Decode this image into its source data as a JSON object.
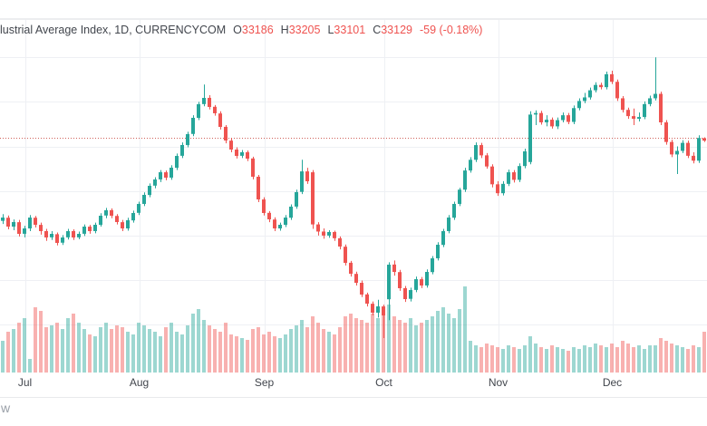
{
  "header": {
    "symbol_text": "lustrial Average Index, 1D, CURRENCYCOM",
    "ohlc": [
      {
        "k": "O",
        "v": "33186"
      },
      {
        "k": "H",
        "v": "33205"
      },
      {
        "k": "L",
        "v": "33101"
      },
      {
        "k": "C",
        "v": "33129"
      }
    ],
    "change": "-59 (-0.18%)"
  },
  "watermark": "w",
  "colors": {
    "up": "#26a69a",
    "down": "#ef5350",
    "vol_up": "rgba(38,166,154,0.45)",
    "vol_down": "rgba(239,83,80,0.45)",
    "grid": "#eef0f4",
    "prev_close_line": "#d0605a",
    "axis_text": "#42464d",
    "legend_value": "#ef5350"
  },
  "chart_data": {
    "type": "candlestick_with_volume",
    "symbol": "Dow Jones Industrial Average Index",
    "interval": "1D",
    "exchange": "CURRENCYCOM",
    "legend_last_bar": {
      "open": 33186,
      "high": 33205,
      "low": 33101,
      "close": 33129,
      "change": -59,
      "change_pct": -0.18
    },
    "prev_close": 33188,
    "ylim": [
      28069,
      35167
    ],
    "h_gridline_prices": [
      29000,
      30000,
      31000,
      32000,
      33000,
      34000,
      35000
    ],
    "x_tick_labels": [
      "Jul",
      "Aug",
      "Sep",
      "Oct",
      "Nov",
      "Dec"
    ],
    "month_start_indices": [
      4,
      25,
      48,
      70,
      91,
      112
    ],
    "grid_on": true,
    "legend_position": "top-left",
    "candles_format": [
      "open",
      "high",
      "low",
      "close",
      "volume_rel"
    ],
    "candles": [
      [
        31330,
        31480,
        31260,
        31404,
        35
      ],
      [
        31400,
        31450,
        31140,
        31201,
        45
      ],
      [
        31200,
        31360,
        31120,
        31303,
        48
      ],
      [
        31300,
        31350,
        30980,
        31038,
        55
      ],
      [
        31040,
        31220,
        30960,
        31160,
        60
      ],
      [
        31160,
        31460,
        31100,
        31404,
        15
      ],
      [
        31400,
        31440,
        31180,
        31242,
        72
      ],
      [
        31240,
        31290,
        31020,
        31099,
        68
      ],
      [
        31100,
        31150,
        30880,
        30957,
        50
      ],
      [
        30960,
        31100,
        30900,
        31038,
        52
      ],
      [
        31030,
        31070,
        30780,
        30835,
        55
      ],
      [
        30840,
        31010,
        30790,
        30957,
        48
      ],
      [
        30960,
        31150,
        30910,
        31099,
        60
      ],
      [
        31100,
        31140,
        30900,
        30957,
        65
      ],
      [
        30960,
        31090,
        30920,
        31038,
        55
      ],
      [
        31040,
        31250,
        30990,
        31201,
        48
      ],
      [
        31200,
        31240,
        31040,
        31099,
        42
      ],
      [
        31100,
        31290,
        31050,
        31242,
        40
      ],
      [
        31240,
        31500,
        31200,
        31445,
        50
      ],
      [
        31450,
        31620,
        31390,
        31567,
        55
      ],
      [
        31570,
        31610,
        31390,
        31445,
        48
      ],
      [
        31440,
        31480,
        31250,
        31303,
        52
      ],
      [
        31300,
        31350,
        31100,
        31160,
        50
      ],
      [
        31160,
        31400,
        31110,
        31343,
        45
      ],
      [
        31340,
        31560,
        31290,
        31506,
        42
      ],
      [
        31510,
        31760,
        31460,
        31710,
        55
      ],
      [
        31710,
        31970,
        31660,
        31913,
        52
      ],
      [
        31910,
        32170,
        31860,
        32116,
        48
      ],
      [
        32120,
        32310,
        32060,
        32259,
        45
      ],
      [
        32260,
        32470,
        32200,
        32421,
        40
      ],
      [
        32420,
        32460,
        32240,
        32299,
        50
      ],
      [
        32300,
        32580,
        32250,
        32523,
        55
      ],
      [
        32520,
        32840,
        32470,
        32787,
        45
      ],
      [
        32790,
        33090,
        32740,
        33032,
        42
      ],
      [
        33030,
        33330,
        32980,
        33276,
        52
      ],
      [
        33280,
        33700,
        33230,
        33642,
        65
      ],
      [
        33640,
        34000,
        33590,
        33947,
        70
      ],
      [
        33950,
        34390,
        33900,
        34089,
        58
      ],
      [
        34090,
        34150,
        33830,
        33886,
        52
      ],
      [
        33890,
        33930,
        33690,
        33744,
        48
      ],
      [
        33740,
        33790,
        33380,
        33438,
        45
      ],
      [
        33440,
        33480,
        33070,
        33133,
        55
      ],
      [
        33130,
        33180,
        32870,
        32930,
        42
      ],
      [
        32930,
        32980,
        32730,
        32787,
        40
      ],
      [
        32790,
        32920,
        32740,
        32869,
        38
      ],
      [
        32870,
        32910,
        32670,
        32726,
        36
      ],
      [
        32730,
        32770,
        32260,
        32320,
        48
      ],
      [
        32320,
        32360,
        31750,
        31811,
        50
      ],
      [
        31810,
        31860,
        31450,
        31506,
        42
      ],
      [
        31510,
        31550,
        31300,
        31364,
        45
      ],
      [
        31360,
        31410,
        31100,
        31160,
        40
      ],
      [
        31160,
        31290,
        31110,
        31242,
        38
      ],
      [
        31240,
        31460,
        31190,
        31404,
        42
      ],
      [
        31400,
        31700,
        31350,
        31649,
        48
      ],
      [
        31650,
        32030,
        31600,
        31974,
        52
      ],
      [
        31980,
        32700,
        31930,
        32440,
        58
      ],
      [
        32440,
        32520,
        32160,
        32218,
        50
      ],
      [
        32420,
        32470,
        31150,
        31250,
        62
      ],
      [
        31250,
        31300,
        31000,
        31090,
        55
      ],
      [
        31090,
        31160,
        30930,
        31000,
        48
      ],
      [
        31000,
        31120,
        30950,
        31080,
        45
      ],
      [
        31080,
        31110,
        30880,
        30940,
        42
      ],
      [
        30940,
        30980,
        30690,
        30754,
        50
      ],
      [
        30750,
        30800,
        30330,
        30387,
        62
      ],
      [
        30390,
        30430,
        30080,
        30143,
        65
      ],
      [
        30140,
        30190,
        29880,
        29940,
        60
      ],
      [
        29940,
        29990,
        29620,
        29676,
        58
      ],
      [
        29680,
        29720,
        29410,
        29472,
        55
      ],
      [
        29470,
        29520,
        29210,
        29269,
        65
      ],
      [
        29270,
        29560,
        29160,
        29411,
        60
      ],
      [
        29410,
        29450,
        28700,
        29208,
        68
      ],
      [
        29570,
        30400,
        29100,
        30347,
        75
      ],
      [
        30350,
        30440,
        30100,
        30184,
        62
      ],
      [
        30180,
        30230,
        29760,
        29818,
        58
      ],
      [
        29820,
        29870,
        29510,
        29574,
        55
      ],
      [
        29580,
        29830,
        29520,
        29777,
        60
      ],
      [
        29780,
        30080,
        29730,
        30021,
        52
      ],
      [
        30020,
        30070,
        29820,
        29879,
        55
      ],
      [
        29880,
        30240,
        29830,
        30184,
        58
      ],
      [
        30180,
        30540,
        30130,
        30489,
        62
      ],
      [
        30490,
        30850,
        30440,
        30794,
        68
      ],
      [
        30790,
        31150,
        30740,
        31099,
        72
      ],
      [
        31100,
        31460,
        31050,
        31404,
        65
      ],
      [
        31400,
        31760,
        31350,
        31710,
        60
      ],
      [
        31710,
        32070,
        31660,
        32030,
        70
      ],
      [
        32030,
        32520,
        31980,
        32460,
        95
      ],
      [
        32460,
        32760,
        32410,
        32700,
        35
      ],
      [
        32700,
        33090,
        32650,
        33030,
        30
      ],
      [
        33030,
        33080,
        32740,
        32800,
        28
      ],
      [
        32800,
        32850,
        32500,
        32550,
        32
      ],
      [
        32550,
        32600,
        32080,
        32150,
        30
      ],
      [
        32150,
        32220,
        31890,
        31950,
        28
      ],
      [
        31950,
        32220,
        31900,
        32160,
        26
      ],
      [
        32160,
        32480,
        32110,
        32420,
        30
      ],
      [
        32420,
        32470,
        32190,
        32250,
        28
      ],
      [
        32250,
        32620,
        32200,
        32560,
        26
      ],
      [
        32560,
        32950,
        32510,
        32890,
        30
      ],
      [
        32650,
        33790,
        32600,
        33715,
        40
      ],
      [
        33715,
        33810,
        33480,
        33750,
        32
      ],
      [
        33750,
        33800,
        33490,
        33540,
        28
      ],
      [
        33540,
        33700,
        33450,
        33600,
        26
      ],
      [
        33600,
        33650,
        33400,
        33450,
        30
      ],
      [
        33450,
        33650,
        33390,
        33590,
        28
      ],
      [
        33590,
        33760,
        33540,
        33700,
        26
      ],
      [
        33700,
        33750,
        33500,
        33550,
        24
      ],
      [
        33550,
        33920,
        33500,
        33860,
        28
      ],
      [
        33860,
        34080,
        33810,
        34020,
        26
      ],
      [
        34020,
        34200,
        33970,
        34100,
        30
      ],
      [
        34100,
        34320,
        34050,
        34260,
        28
      ],
      [
        34260,
        34440,
        34210,
        34380,
        32
      ],
      [
        34380,
        34430,
        34280,
        34330,
        30
      ],
      [
        34330,
        34680,
        34280,
        34620,
        28
      ],
      [
        34620,
        34700,
        34400,
        34450,
        32
      ],
      [
        34450,
        34500,
        34020,
        34080,
        28
      ],
      [
        34080,
        34130,
        33760,
        33820,
        35
      ],
      [
        33820,
        33870,
        33620,
        33680,
        32
      ],
      [
        33680,
        33850,
        33480,
        33620,
        28
      ],
      [
        33620,
        33760,
        33560,
        33660,
        30
      ],
      [
        33660,
        34010,
        33610,
        33950,
        26
      ],
      [
        33950,
        34140,
        33900,
        34080,
        30
      ],
      [
        34080,
        35000,
        34030,
        34180,
        30
      ],
      [
        34180,
        34230,
        33480,
        33540,
        38
      ],
      [
        33540,
        33590,
        33040,
        33100,
        35
      ],
      [
        33100,
        33150,
        32760,
        32820,
        32
      ],
      [
        32820,
        33000,
        32380,
        32900,
        30
      ],
      [
        32900,
        33140,
        32850,
        33080,
        28
      ],
      [
        33080,
        33130,
        32740,
        32790,
        26
      ],
      [
        32790,
        32870,
        32620,
        32680,
        30
      ],
      [
        32680,
        33250,
        32630,
        33190,
        28
      ],
      [
        33186,
        33205,
        33101,
        33129,
        45
      ]
    ]
  }
}
